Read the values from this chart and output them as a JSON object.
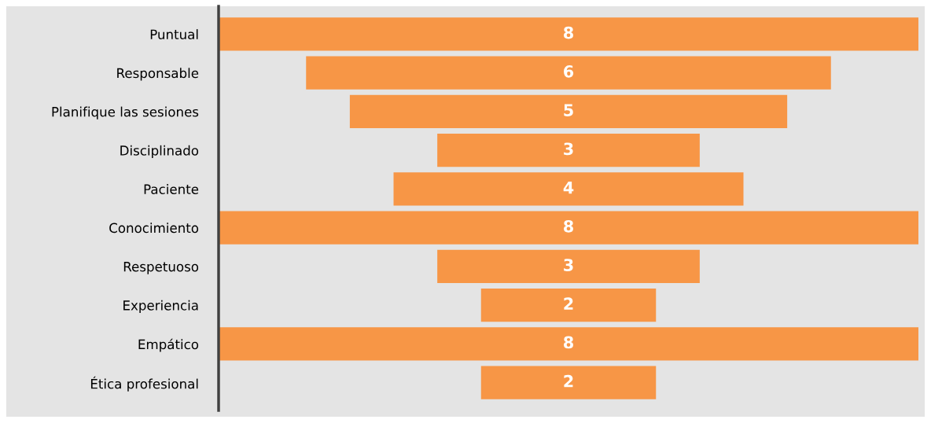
{
  "chart_data": {
    "type": "other",
    "categories": [
      "Puntual",
      "Responsable",
      "Planifique las sesiones",
      "Disciplinado",
      "Paciente",
      "Conocimiento",
      "Respetuoso",
      "Experiencia",
      "Empático",
      "Ética profesional"
    ],
    "values": [
      8,
      6,
      5,
      3,
      4,
      8,
      3,
      2,
      8,
      2
    ],
    "color": "#f79646",
    "data_labels": true
  }
}
